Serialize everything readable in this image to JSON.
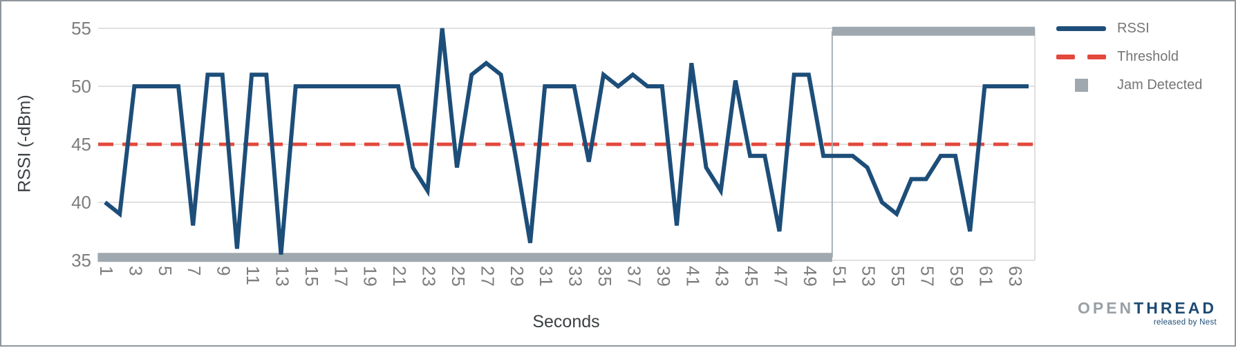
{
  "chart_data": {
    "type": "line",
    "title": "",
    "xlabel": "Seconds",
    "ylabel": "RSSI (-dBm)",
    "xlim": [
      0.5,
      64.5
    ],
    "ylim": [
      35,
      55
    ],
    "grid": true,
    "legend_position": "top-right",
    "y_ticks": [
      35,
      40,
      45,
      50,
      55
    ],
    "x_ticks": [
      1,
      3,
      5,
      7,
      9,
      11,
      13,
      15,
      17,
      19,
      21,
      23,
      25,
      27,
      29,
      31,
      33,
      35,
      37,
      39,
      41,
      43,
      45,
      47,
      49,
      51,
      53,
      55,
      57,
      59,
      61,
      63
    ],
    "series": [
      {
        "name": "RSSI",
        "type": "line",
        "color": "#1d4e79",
        "x_start": 1,
        "x_step": 1,
        "values": [
          40,
          39,
          50,
          50,
          50,
          50,
          38,
          51,
          51,
          36,
          51,
          51,
          35.5,
          50,
          50,
          50,
          50,
          50,
          50,
          50,
          50,
          43,
          41,
          55,
          43,
          51,
          52,
          51,
          44,
          36.5,
          50,
          50,
          50,
          43.5,
          51,
          50,
          51,
          50,
          50,
          38,
          52,
          43,
          41,
          50.5,
          44,
          44,
          37.5,
          51,
          51,
          44,
          44,
          44,
          43,
          40,
          39,
          42,
          42,
          44,
          44,
          37.5,
          50,
          50,
          50,
          50
        ]
      },
      {
        "name": "Threshold",
        "type": "threshold",
        "color": "#e3483c",
        "value": 45
      },
      {
        "name": "Jam Detected",
        "type": "segments",
        "color": "#9fa8ae",
        "segments": [
          {
            "from": 0.5,
            "to": 50.6,
            "value": 35.25
          },
          {
            "from": 50.6,
            "to": 64.5,
            "value": 54.75
          }
        ],
        "transition_second": 50.6
      }
    ]
  },
  "axis": {
    "x_title": "Seconds",
    "y_title": "RSSI (-dBm)"
  },
  "legend": {
    "items": [
      {
        "label": "RSSI"
      },
      {
        "label": "Threshold"
      },
      {
        "label": "Jam Detected"
      }
    ]
  },
  "logo": {
    "word_part1": "OPEN",
    "word_part2": "THREAD",
    "tagline": "released by Nest"
  },
  "colors": {
    "rssi": "#1d4e79",
    "threshold": "#e3483c",
    "jam": "#9fa8ae",
    "gridline": "#d5d5d5"
  }
}
